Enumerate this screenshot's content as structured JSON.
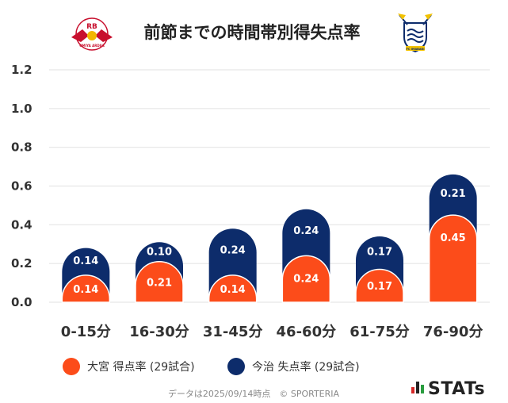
{
  "chart_data": {
    "type": "bar",
    "title": "前節までの時間帯別得失点率",
    "categories": [
      "0-15分",
      "16-30分",
      "31-45分",
      "46-60分",
      "61-75分",
      "76-90分"
    ],
    "series": [
      {
        "name": "大宮 得点率 (29試合)",
        "color": "#fc4c1a",
        "values": [
          0.14,
          0.21,
          0.14,
          0.24,
          0.17,
          0.45
        ]
      },
      {
        "name": "今治 失点率 (29試合)",
        "color": "#0d2c6b",
        "values": [
          0.14,
          0.1,
          0.24,
          0.24,
          0.17,
          0.21
        ]
      }
    ],
    "stacked": true,
    "yticks": [
      "0.0",
      "0.2",
      "0.4",
      "0.6",
      "0.8",
      "1.0",
      "1.2"
    ],
    "ylim": [
      0,
      1.2
    ],
    "grid": true,
    "legend_position": "bottom-left"
  },
  "logos": {
    "home_logo_text": "RB",
    "home_logo_subtext": "OMIYA ARDIJA",
    "away_logo_text": "FC IMABARI"
  },
  "footer": "データは2025/09/14時点　© SPORTERIA",
  "brand": "STATs",
  "colors": {
    "grid": "#e6e6e6",
    "background": "#ffffff"
  }
}
